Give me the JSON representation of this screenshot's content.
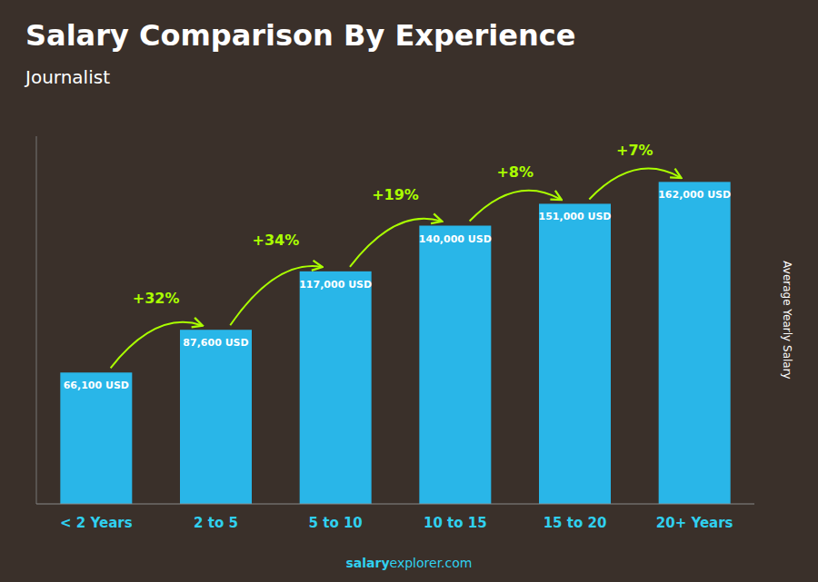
{
  "chart_data": {
    "type": "bar",
    "title": "Salary Comparison By Experience",
    "subtitle": "Journalist",
    "categories": [
      "< 2 Years",
      "2 to 5",
      "5 to 10",
      "10 to 15",
      "15 to 20",
      "20+ Years"
    ],
    "values": [
      66100,
      87600,
      117000,
      140000,
      151000,
      162000
    ],
    "value_labels": [
      "66,100 USD",
      "87,600 USD",
      "117,000 USD",
      "140,000 USD",
      "151,000 USD",
      "162,000 USD"
    ],
    "data_labels": true,
    "annotations": [
      "+32%",
      "+34%",
      "+19%",
      "+8%",
      "+7%"
    ],
    "y_label": "Average Yearly Salary",
    "source": [
      "salary",
      "explorer.com"
    ],
    "color": "#29b6e8",
    "ylim": [
      0,
      185000
    ],
    "tick_labels": "x",
    "grid": false
  }
}
